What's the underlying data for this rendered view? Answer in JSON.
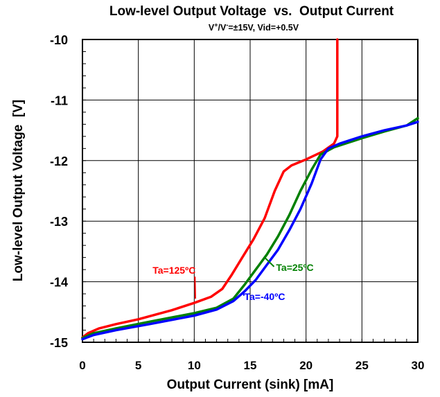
{
  "chart_data": {
    "type": "line",
    "title": "Low-level Output Voltage  vs.  Output Current",
    "subtitle": {
      "prefix": "V",
      "sup1": "+",
      "mid": "/V",
      "sup2": "-",
      "suffix": "=±15V, Vid=+0.5V"
    },
    "xlabel": "Output Current (sink) [mA]",
    "ylabel": "Low-level Output Voltage  [V]",
    "xlim": [
      0,
      30
    ],
    "ylim": [
      -15,
      -10
    ],
    "x_ticks": [
      0,
      5,
      10,
      15,
      20,
      25,
      30
    ],
    "x_tick_labels": [
      "0",
      "5",
      "10",
      "15",
      "20",
      "25",
      "30"
    ],
    "y_ticks": [
      -15,
      -14,
      -13,
      -12,
      -11,
      -10
    ],
    "y_tick_labels": [
      "-15",
      "-14",
      "-13",
      "-12",
      "-11",
      "-10"
    ],
    "grid": true,
    "series": [
      {
        "name": "Ta=125ºC",
        "color": "#ff0000",
        "points": [
          [
            0,
            -14.92
          ],
          [
            0.5,
            -14.85
          ],
          [
            1.5,
            -14.77
          ],
          [
            3,
            -14.7
          ],
          [
            5,
            -14.62
          ],
          [
            8,
            -14.47
          ],
          [
            10,
            -14.35
          ],
          [
            11.5,
            -14.25
          ],
          [
            12.5,
            -14.12
          ],
          [
            13.3,
            -13.9
          ],
          [
            14.3,
            -13.6
          ],
          [
            15.3,
            -13.3
          ],
          [
            16.3,
            -12.95
          ],
          [
            17.2,
            -12.5
          ],
          [
            18,
            -12.18
          ],
          [
            18.7,
            -12.08
          ],
          [
            20,
            -11.98
          ],
          [
            21.5,
            -11.85
          ],
          [
            22.5,
            -11.72
          ],
          [
            22.8,
            -11.6
          ],
          [
            22.8,
            -10
          ]
        ]
      },
      {
        "name": "Ta=25ºC",
        "color": "#008000",
        "points": [
          [
            0,
            -14.93
          ],
          [
            1,
            -14.85
          ],
          [
            3,
            -14.77
          ],
          [
            6,
            -14.66
          ],
          [
            10,
            -14.52
          ],
          [
            12,
            -14.43
          ],
          [
            13.5,
            -14.28
          ],
          [
            14.5,
            -14.05
          ],
          [
            15.5,
            -13.8
          ],
          [
            16.5,
            -13.55
          ],
          [
            17.5,
            -13.25
          ],
          [
            18.5,
            -12.9
          ],
          [
            19.5,
            -12.5
          ],
          [
            20.5,
            -12.15
          ],
          [
            21.3,
            -11.9
          ],
          [
            22.5,
            -11.78
          ],
          [
            25,
            -11.63
          ],
          [
            27,
            -11.52
          ],
          [
            29,
            -11.42
          ],
          [
            30,
            -11.3
          ]
        ]
      },
      {
        "name": "Ta=-40ºC",
        "color": "#0000ff",
        "points": [
          [
            0,
            -14.95
          ],
          [
            1,
            -14.88
          ],
          [
            3,
            -14.8
          ],
          [
            6,
            -14.7
          ],
          [
            10,
            -14.56
          ],
          [
            12,
            -14.46
          ],
          [
            13.5,
            -14.32
          ],
          [
            14.5,
            -14.16
          ],
          [
            15.5,
            -13.97
          ],
          [
            16.5,
            -13.72
          ],
          [
            17.5,
            -13.47
          ],
          [
            18.5,
            -13.15
          ],
          [
            19.5,
            -12.8
          ],
          [
            20.5,
            -12.38
          ],
          [
            21.3,
            -11.98
          ],
          [
            22,
            -11.8
          ],
          [
            23,
            -11.72
          ],
          [
            25,
            -11.6
          ],
          [
            27,
            -11.5
          ],
          [
            29,
            -11.42
          ],
          [
            30,
            -11.36
          ]
        ]
      }
    ],
    "annotations": [
      {
        "text": "Ta=125ºC",
        "color": "#ff0000",
        "label_x": 8.2,
        "label_y": -13.87,
        "arrow_to": [
          10.1,
          -14.28
        ]
      },
      {
        "text": "Ta=25ºC",
        "color": "#008000",
        "label_x": 19.0,
        "label_y": -13.82,
        "arrow_to": [
          16.3,
          -13.6
        ]
      },
      {
        "text": "Ta=-40ºC",
        "color": "#0000ff",
        "label_x": 16.3,
        "label_y": -14.3,
        "arrow_to": [
          14.4,
          -14.18
        ]
      }
    ]
  }
}
